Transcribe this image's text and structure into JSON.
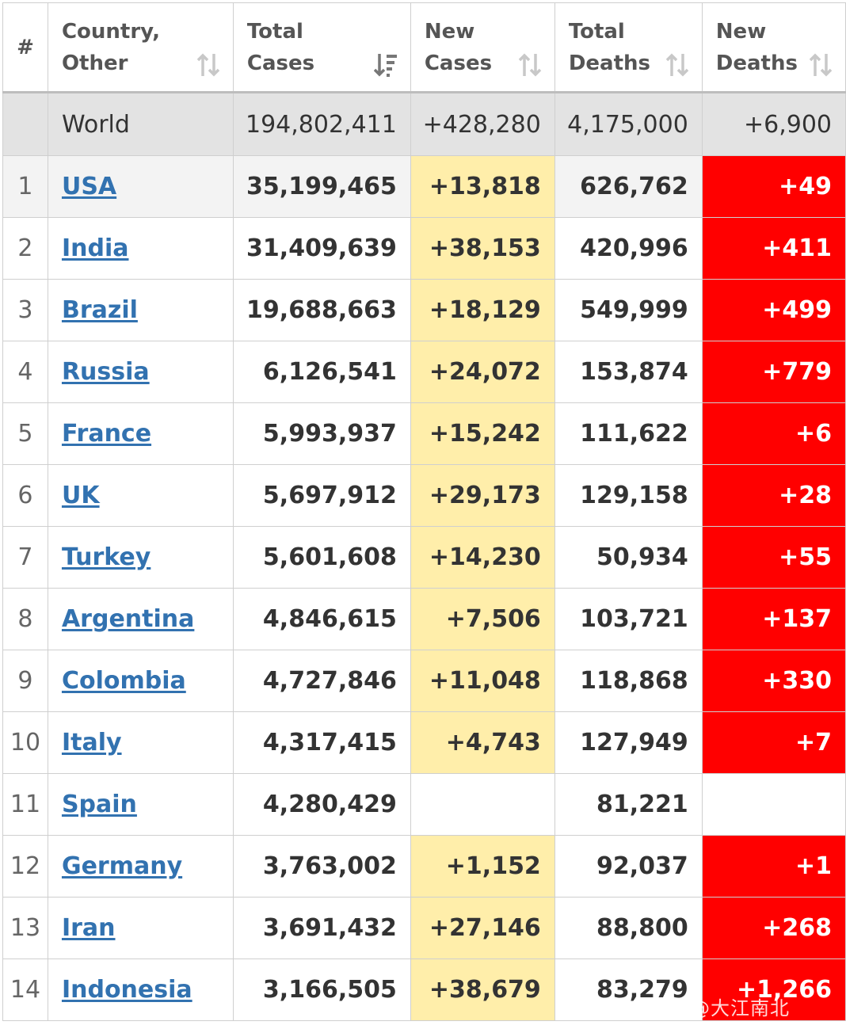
{
  "header": {
    "rank": "#",
    "country": "Country, Other",
    "total_cases": "Total Cases",
    "new_cases": "New Cases",
    "total_deaths": "Total Deaths",
    "new_deaths": "New Deaths"
  },
  "world": {
    "label": "World",
    "total_cases": "194,802,411",
    "new_cases": "+428,280",
    "total_deaths": "4,175,000",
    "new_deaths": "+6,900"
  },
  "rows": [
    {
      "rank": "1",
      "country": "USA",
      "total_cases": "35,199,465",
      "new_cases": "+13,818",
      "total_deaths": "626,762",
      "new_deaths": "+49"
    },
    {
      "rank": "2",
      "country": "India",
      "total_cases": "31,409,639",
      "new_cases": "+38,153",
      "total_deaths": "420,996",
      "new_deaths": "+411"
    },
    {
      "rank": "3",
      "country": "Brazil",
      "total_cases": "19,688,663",
      "new_cases": "+18,129",
      "total_deaths": "549,999",
      "new_deaths": "+499"
    },
    {
      "rank": "4",
      "country": "Russia",
      "total_cases": "6,126,541",
      "new_cases": "+24,072",
      "total_deaths": "153,874",
      "new_deaths": "+779"
    },
    {
      "rank": "5",
      "country": "France",
      "total_cases": "5,993,937",
      "new_cases": "+15,242",
      "total_deaths": "111,622",
      "new_deaths": "+6"
    },
    {
      "rank": "6",
      "country": "UK",
      "total_cases": "5,697,912",
      "new_cases": "+29,173",
      "total_deaths": "129,158",
      "new_deaths": "+28"
    },
    {
      "rank": "7",
      "country": "Turkey",
      "total_cases": "5,601,608",
      "new_cases": "+14,230",
      "total_deaths": "50,934",
      "new_deaths": "+55"
    },
    {
      "rank": "8",
      "country": "Argentina",
      "total_cases": "4,846,615",
      "new_cases": "+7,506",
      "total_deaths": "103,721",
      "new_deaths": "+137"
    },
    {
      "rank": "9",
      "country": "Colombia",
      "total_cases": "4,727,846",
      "new_cases": "+11,048",
      "total_deaths": "118,868",
      "new_deaths": "+330"
    },
    {
      "rank": "10",
      "country": "Italy",
      "total_cases": "4,317,415",
      "new_cases": "+4,743",
      "total_deaths": "127,949",
      "new_deaths": "+7"
    },
    {
      "rank": "11",
      "country": "Spain",
      "total_cases": "4,280,429",
      "new_cases": "",
      "total_deaths": "81,221",
      "new_deaths": ""
    },
    {
      "rank": "12",
      "country": "Germany",
      "total_cases": "3,763,002",
      "new_cases": "+1,152",
      "total_deaths": "92,037",
      "new_deaths": "+1"
    },
    {
      "rank": "13",
      "country": "Iran",
      "total_cases": "3,691,432",
      "new_cases": "+27,146",
      "total_deaths": "88,800",
      "new_deaths": "+268"
    },
    {
      "rank": "14",
      "country": "Indonesia",
      "total_cases": "3,166,505",
      "new_cases": "+38,679",
      "total_deaths": "83,279",
      "new_deaths": "+1,266"
    }
  ],
  "watermark": "社区@大江南北",
  "colors": {
    "new_cases_bg": "#ffeeaa",
    "new_deaths_bg": "#ff0000",
    "link": "#3272b0",
    "world_row_bg": "#e3e3e3"
  }
}
